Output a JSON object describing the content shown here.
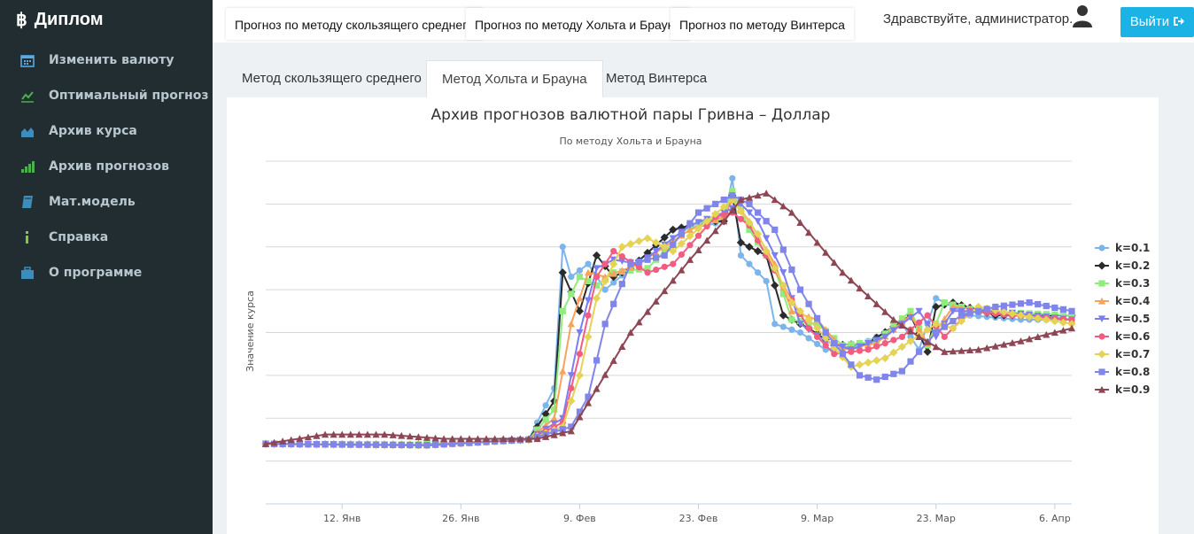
{
  "sidebar": {
    "brand": "Диплом",
    "brand_icon": "bitcoin-icon",
    "items": [
      {
        "label": "Изменить валюту",
        "icon": "calendar-icon"
      },
      {
        "label": "Оптимальный прогноз",
        "icon": "line-chart-icon"
      },
      {
        "label": "Архив курса",
        "icon": "area-chart-icon"
      },
      {
        "label": "Архив прогнозов",
        "icon": "signal-bars-icon"
      },
      {
        "label": "Мат.модель",
        "icon": "book-icon"
      },
      {
        "label": "Справка",
        "icon": "info-icon"
      },
      {
        "label": "О программе",
        "icon": "briefcase-icon"
      }
    ]
  },
  "header": {
    "tabs": [
      "Прогноз по методу скользящего среднего",
      "Прогноз по методу Хольта и Брауна",
      "Прогноз по методу Винтерса"
    ],
    "greeting": "Здравствуйте, администратор.",
    "logout_label": "Выйти"
  },
  "content_tabs": {
    "items": [
      "Метод скользящего среднего",
      "Метод Хольта и Брауна",
      "Метод Винтерса"
    ],
    "active": "Метод Хольта и Брауна"
  },
  "colors": {
    "sidebar_bg": "#222d32",
    "accent": "#1bb2e6"
  },
  "chart_data": {
    "type": "line",
    "title": "Архив прогнозов валютной пары Гривна – Доллар",
    "subtitle": "По методу Хольта и Брауна",
    "ylabel": "Значение курса",
    "x_ticks": [
      "12. Янв",
      "26. Янв",
      "9. Фев",
      "23. Фев",
      "9. Мар",
      "23. Мар",
      "6. Апр"
    ],
    "x_start": "2015-01-03",
    "x_end": "2015-04-08",
    "ylim": [
      0,
      8
    ],
    "grid": true,
    "legend_position": "right",
    "series": [
      {
        "name": "k=0.1",
        "color": "#7cb5ec",
        "marker": "circle",
        "points": [
          [
            "2015-01-03",
            1.4
          ],
          [
            "2015-01-20",
            1.37
          ],
          [
            "2015-02-03",
            1.5
          ],
          [
            "2015-02-06",
            2.7
          ],
          [
            "2015-02-07",
            6.0
          ],
          [
            "2015-02-08",
            5.3
          ],
          [
            "2015-02-10",
            5.6
          ],
          [
            "2015-02-12",
            5.0
          ],
          [
            "2015-02-15",
            5.5
          ],
          [
            "2015-02-20",
            6.4
          ],
          [
            "2015-02-24",
            6.5
          ],
          [
            "2015-02-26",
            6.6
          ],
          [
            "2015-02-27",
            7.6
          ],
          [
            "2015-02-28",
            5.8
          ],
          [
            "2015-03-03",
            5.2
          ],
          [
            "2015-03-04",
            4.2
          ],
          [
            "2015-03-07",
            4.0
          ],
          [
            "2015-03-10",
            3.6
          ],
          [
            "2015-03-14",
            3.7
          ],
          [
            "2015-03-19",
            4.2
          ],
          [
            "2015-03-21",
            3.6
          ],
          [
            "2015-03-23",
            4.8
          ],
          [
            "2015-03-27",
            4.4
          ],
          [
            "2015-04-02",
            4.3
          ],
          [
            "2015-04-08",
            4.3
          ]
        ]
      },
      {
        "name": "k=0.2",
        "color": "#2b2b2b",
        "marker": "diamond",
        "points": [
          [
            "2015-01-03",
            1.4
          ],
          [
            "2015-01-20",
            1.38
          ],
          [
            "2015-02-03",
            1.5
          ],
          [
            "2015-02-06",
            2.4
          ],
          [
            "2015-02-07",
            5.4
          ],
          [
            "2015-02-09",
            4.5
          ],
          [
            "2015-02-11",
            5.8
          ],
          [
            "2015-02-13",
            5.3
          ],
          [
            "2015-02-15",
            5.5
          ],
          [
            "2015-02-20",
            6.4
          ],
          [
            "2015-02-24",
            6.6
          ],
          [
            "2015-02-26",
            6.6
          ],
          [
            "2015-02-27",
            7.2
          ],
          [
            "2015-02-28",
            6.1
          ],
          [
            "2015-03-03",
            5.8
          ],
          [
            "2015-03-05",
            4.4
          ],
          [
            "2015-03-08",
            4.1
          ],
          [
            "2015-03-11",
            3.7
          ],
          [
            "2015-03-15",
            3.75
          ],
          [
            "2015-03-20",
            4.4
          ],
          [
            "2015-03-22",
            3.55
          ],
          [
            "2015-03-23",
            4.6
          ],
          [
            "2015-03-25",
            4.7
          ],
          [
            "2015-03-30",
            4.4
          ],
          [
            "2015-04-08",
            4.4
          ]
        ]
      },
      {
        "name": "k=0.3",
        "color": "#90ed7d",
        "marker": "square",
        "points": [
          [
            "2015-01-03",
            1.4
          ],
          [
            "2015-01-20",
            1.38
          ],
          [
            "2015-02-03",
            1.5
          ],
          [
            "2015-02-06",
            2.2
          ],
          [
            "2015-02-07",
            4.5
          ],
          [
            "2015-02-09",
            5.3
          ],
          [
            "2015-02-11",
            5.1
          ],
          [
            "2015-02-13",
            5.4
          ],
          [
            "2015-02-17",
            5.5
          ],
          [
            "2015-02-22",
            6.5
          ],
          [
            "2015-02-26",
            6.7
          ],
          [
            "2015-02-27",
            7.3
          ],
          [
            "2015-03-01",
            6.4
          ],
          [
            "2015-03-04",
            5.5
          ],
          [
            "2015-03-06",
            4.3
          ],
          [
            "2015-03-09",
            4.2
          ],
          [
            "2015-03-12",
            3.7
          ],
          [
            "2015-03-16",
            3.8
          ],
          [
            "2015-03-20",
            4.5
          ],
          [
            "2015-03-22",
            3.7
          ],
          [
            "2015-03-24",
            4.7
          ],
          [
            "2015-03-28",
            4.5
          ],
          [
            "2015-04-08",
            4.4
          ]
        ]
      },
      {
        "name": "k=0.4",
        "color": "#f7a35c",
        "marker": "triangle",
        "points": [
          [
            "2015-01-03",
            1.4
          ],
          [
            "2015-01-22",
            1.38
          ],
          [
            "2015-02-03",
            1.5
          ],
          [
            "2015-02-06",
            2.0
          ],
          [
            "2015-02-08",
            4.2
          ],
          [
            "2015-02-10",
            5.4
          ],
          [
            "2015-02-12",
            5.3
          ],
          [
            "2015-02-16",
            5.6
          ],
          [
            "2015-02-22",
            6.4
          ],
          [
            "2015-02-26",
            6.7
          ],
          [
            "2015-02-27",
            7.1
          ],
          [
            "2015-03-01",
            6.6
          ],
          [
            "2015-03-04",
            5.6
          ],
          [
            "2015-03-06",
            4.5
          ],
          [
            "2015-03-09",
            4.3
          ],
          [
            "2015-03-12",
            3.6
          ],
          [
            "2015-03-16",
            3.75
          ],
          [
            "2015-03-20",
            4.4
          ],
          [
            "2015-03-22",
            3.75
          ],
          [
            "2015-03-25",
            4.6
          ],
          [
            "2015-03-29",
            4.5
          ],
          [
            "2015-04-08",
            4.3
          ]
        ]
      },
      {
        "name": "k=0.5",
        "color": "#7b7ef0",
        "marker": "triangle-down",
        "points": [
          [
            "2015-01-03",
            1.4
          ],
          [
            "2015-01-22",
            1.37
          ],
          [
            "2015-02-03",
            1.5
          ],
          [
            "2015-02-07",
            2.0
          ],
          [
            "2015-02-09",
            4.0
          ],
          [
            "2015-02-11",
            5.5
          ],
          [
            "2015-02-13",
            5.7
          ],
          [
            "2015-02-16",
            5.6
          ],
          [
            "2015-02-22",
            6.5
          ],
          [
            "2015-02-26",
            6.8
          ],
          [
            "2015-02-28",
            7.0
          ],
          [
            "2015-03-02",
            6.6
          ],
          [
            "2015-03-05",
            5.4
          ],
          [
            "2015-03-07",
            4.2
          ],
          [
            "2015-03-10",
            3.8
          ],
          [
            "2015-03-13",
            3.6
          ],
          [
            "2015-03-17",
            3.9
          ],
          [
            "2015-03-21",
            4.5
          ],
          [
            "2015-03-23",
            3.9
          ],
          [
            "2015-03-25",
            4.5
          ],
          [
            "2015-03-30",
            4.5
          ],
          [
            "2015-04-08",
            4.3
          ]
        ]
      },
      {
        "name": "k=0.6",
        "color": "#f15c80",
        "marker": "circle",
        "points": [
          [
            "2015-01-03",
            1.4
          ],
          [
            "2015-01-22",
            1.36
          ],
          [
            "2015-02-03",
            1.5
          ],
          [
            "2015-02-07",
            1.9
          ],
          [
            "2015-02-09",
            3.5
          ],
          [
            "2015-02-11",
            5.3
          ],
          [
            "2015-02-13",
            5.9
          ],
          [
            "2015-02-17",
            5.4
          ],
          [
            "2015-02-20",
            5.6
          ],
          [
            "2015-02-25",
            6.7
          ],
          [
            "2015-02-27",
            6.8
          ],
          [
            "2015-03-01",
            6.5
          ],
          [
            "2015-03-05",
            5.1
          ],
          [
            "2015-03-08",
            4.1
          ],
          [
            "2015-03-11",
            3.5
          ],
          [
            "2015-03-15",
            3.6
          ],
          [
            "2015-03-19",
            3.9
          ],
          [
            "2015-03-22",
            4.4
          ],
          [
            "2015-03-24",
            3.9
          ],
          [
            "2015-03-27",
            4.5
          ],
          [
            "2015-04-01",
            4.4
          ],
          [
            "2015-04-08",
            4.3
          ]
        ]
      },
      {
        "name": "k=0.7",
        "color": "#e4d354",
        "marker": "diamond",
        "points": [
          [
            "2015-01-03",
            1.4
          ],
          [
            "2015-01-22",
            1.37
          ],
          [
            "2015-02-03",
            1.5
          ],
          [
            "2015-02-07",
            1.8
          ],
          [
            "2015-02-09",
            3.0
          ],
          [
            "2015-02-11",
            4.8
          ],
          [
            "2015-02-14",
            6.0
          ],
          [
            "2015-02-17",
            6.2
          ],
          [
            "2015-02-20",
            5.9
          ],
          [
            "2015-02-24",
            6.6
          ],
          [
            "2015-02-27",
            7.1
          ],
          [
            "2015-03-02",
            6.3
          ],
          [
            "2015-03-06",
            4.7
          ],
          [
            "2015-03-09",
            4.1
          ],
          [
            "2015-03-13",
            3.2
          ],
          [
            "2015-03-17",
            3.4
          ],
          [
            "2015-03-20",
            3.8
          ],
          [
            "2015-03-23",
            4.2
          ],
          [
            "2015-03-25",
            4.1
          ],
          [
            "2015-03-28",
            4.6
          ],
          [
            "2015-04-02",
            4.4
          ],
          [
            "2015-04-08",
            4.2
          ]
        ]
      },
      {
        "name": "k=0.8",
        "color": "#8085e9",
        "marker": "square",
        "points": [
          [
            "2015-01-03",
            1.4
          ],
          [
            "2015-01-22",
            1.37
          ],
          [
            "2015-02-03",
            1.5
          ],
          [
            "2015-02-08",
            1.8
          ],
          [
            "2015-02-10",
            2.5
          ],
          [
            "2015-02-12",
            4.2
          ],
          [
            "2015-02-15",
            5.6
          ],
          [
            "2015-02-19",
            5.8
          ],
          [
            "2015-02-23",
            6.8
          ],
          [
            "2015-02-27",
            7.2
          ],
          [
            "2015-03-01",
            7.0
          ],
          [
            "2015-03-04",
            6.4
          ],
          [
            "2015-03-07",
            5.0
          ],
          [
            "2015-03-10",
            4.0
          ],
          [
            "2015-03-14",
            3.0
          ],
          [
            "2015-03-16",
            2.9
          ],
          [
            "2015-03-19",
            3.1
          ],
          [
            "2015-03-23",
            4.0
          ],
          [
            "2015-03-26",
            4.4
          ],
          [
            "2015-03-30",
            4.6
          ],
          [
            "2015-04-03",
            4.7
          ],
          [
            "2015-04-08",
            4.5
          ]
        ]
      },
      {
        "name": "k=0.9",
        "color": "#8d4653",
        "marker": "triangle",
        "points": [
          [
            "2015-01-03",
            1.4
          ],
          [
            "2015-01-10",
            1.62
          ],
          [
            "2015-01-17",
            1.62
          ],
          [
            "2015-01-24",
            1.52
          ],
          [
            "2015-02-04",
            1.52
          ],
          [
            "2015-02-08",
            1.7
          ],
          [
            "2015-02-15",
            4.0
          ],
          [
            "2015-02-22",
            5.7
          ],
          [
            "2015-02-26",
            6.6
          ],
          [
            "2015-02-28",
            7.1
          ],
          [
            "2015-03-03",
            7.25
          ],
          [
            "2015-03-06",
            6.8
          ],
          [
            "2015-03-12",
            5.4
          ],
          [
            "2015-03-18",
            4.3
          ],
          [
            "2015-03-21",
            3.9
          ],
          [
            "2015-03-24",
            3.55
          ],
          [
            "2015-03-28",
            3.6
          ],
          [
            "2015-04-02",
            3.8
          ],
          [
            "2015-04-08",
            4.1
          ]
        ]
      }
    ]
  }
}
